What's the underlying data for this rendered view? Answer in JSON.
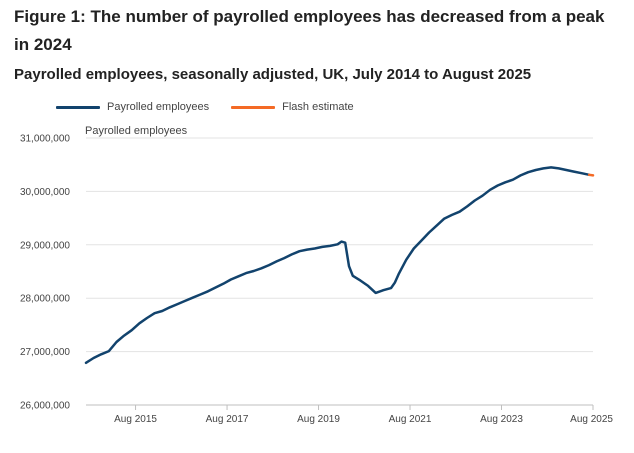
{
  "header": {
    "title": "Figure 1: The number of payrolled employees has decreased from a peak in 2024",
    "subtitle": "Payrolled employees, seasonally adjusted, UK, July 2014 to August 2025"
  },
  "chart_data": {
    "type": "line",
    "ylabel": "Payrolled employees",
    "ylim": [
      26000000,
      31000000
    ],
    "y_ticks": [
      26000000,
      27000000,
      28000000,
      29000000,
      30000000,
      31000000
    ],
    "y_tick_labels": [
      "26,000,000",
      "27,000,000",
      "28,000,000",
      "29,000,000",
      "30,000,000",
      "31,000,000"
    ],
    "x_tick_labels": [
      "Aug 2015",
      "Aug 2017",
      "Aug 2019",
      "Aug 2021",
      "Aug 2023",
      "Aug 2025"
    ],
    "x_ticks": [
      "2015-08",
      "2017-08",
      "2019-08",
      "2021-08",
      "2023-08",
      "2025-08"
    ],
    "xlim": [
      "2014-07",
      "2025-08"
    ],
    "grid": "horizontal",
    "legend": "top-left",
    "series": [
      {
        "name": "Payrolled employees",
        "color": "#12436d",
        "points": [
          [
            "2014-07",
            26790000
          ],
          [
            "2014-09",
            26880000
          ],
          [
            "2014-11",
            26950000
          ],
          [
            "2015-01",
            27010000
          ],
          [
            "2015-03",
            27180000
          ],
          [
            "2015-05",
            27300000
          ],
          [
            "2015-07",
            27400000
          ],
          [
            "2015-09",
            27530000
          ],
          [
            "2015-11",
            27630000
          ],
          [
            "2016-01",
            27720000
          ],
          [
            "2016-03",
            27760000
          ],
          [
            "2016-05",
            27830000
          ],
          [
            "2016-07",
            27890000
          ],
          [
            "2016-09",
            27950000
          ],
          [
            "2016-11",
            28010000
          ],
          [
            "2017-01",
            28070000
          ],
          [
            "2017-03",
            28130000
          ],
          [
            "2017-05",
            28200000
          ],
          [
            "2017-07",
            28270000
          ],
          [
            "2017-09",
            28350000
          ],
          [
            "2017-11",
            28410000
          ],
          [
            "2018-01",
            28470000
          ],
          [
            "2018-03",
            28510000
          ],
          [
            "2018-05",
            28560000
          ],
          [
            "2018-07",
            28620000
          ],
          [
            "2018-09",
            28690000
          ],
          [
            "2018-11",
            28750000
          ],
          [
            "2019-01",
            28820000
          ],
          [
            "2019-03",
            28880000
          ],
          [
            "2019-05",
            28910000
          ],
          [
            "2019-07",
            28930000
          ],
          [
            "2019-09",
            28960000
          ],
          [
            "2019-11",
            28980000
          ],
          [
            "2020-01",
            29010000
          ],
          [
            "2020-02",
            29060000
          ],
          [
            "2020-03",
            29040000
          ],
          [
            "2020-04",
            28600000
          ],
          [
            "2020-05",
            28420000
          ],
          [
            "2020-07",
            28330000
          ],
          [
            "2020-09",
            28230000
          ],
          [
            "2020-11",
            28100000
          ],
          [
            "2021-01",
            28150000
          ],
          [
            "2021-03",
            28190000
          ],
          [
            "2021-04",
            28290000
          ],
          [
            "2021-05",
            28450000
          ],
          [
            "2021-07",
            28720000
          ],
          [
            "2021-09",
            28930000
          ],
          [
            "2021-11",
            29080000
          ],
          [
            "2022-01",
            29230000
          ],
          [
            "2022-03",
            29360000
          ],
          [
            "2022-05",
            29490000
          ],
          [
            "2022-07",
            29560000
          ],
          [
            "2022-09",
            29620000
          ],
          [
            "2022-11",
            29720000
          ],
          [
            "2023-01",
            29830000
          ],
          [
            "2023-03",
            29920000
          ],
          [
            "2023-05",
            30030000
          ],
          [
            "2023-07",
            30110000
          ],
          [
            "2023-09",
            30170000
          ],
          [
            "2023-11",
            30220000
          ],
          [
            "2024-01",
            30300000
          ],
          [
            "2024-03",
            30360000
          ],
          [
            "2024-05",
            30400000
          ],
          [
            "2024-07",
            30430000
          ],
          [
            "2024-09",
            30450000
          ],
          [
            "2024-11",
            30430000
          ],
          [
            "2025-01",
            30400000
          ],
          [
            "2025-03",
            30370000
          ],
          [
            "2025-05",
            30340000
          ],
          [
            "2025-07",
            30310000
          ]
        ]
      },
      {
        "name": "Flash estimate",
        "color": "#f46a25",
        "points": [
          [
            "2025-07",
            30310000
          ],
          [
            "2025-08",
            30300000
          ]
        ]
      }
    ]
  }
}
